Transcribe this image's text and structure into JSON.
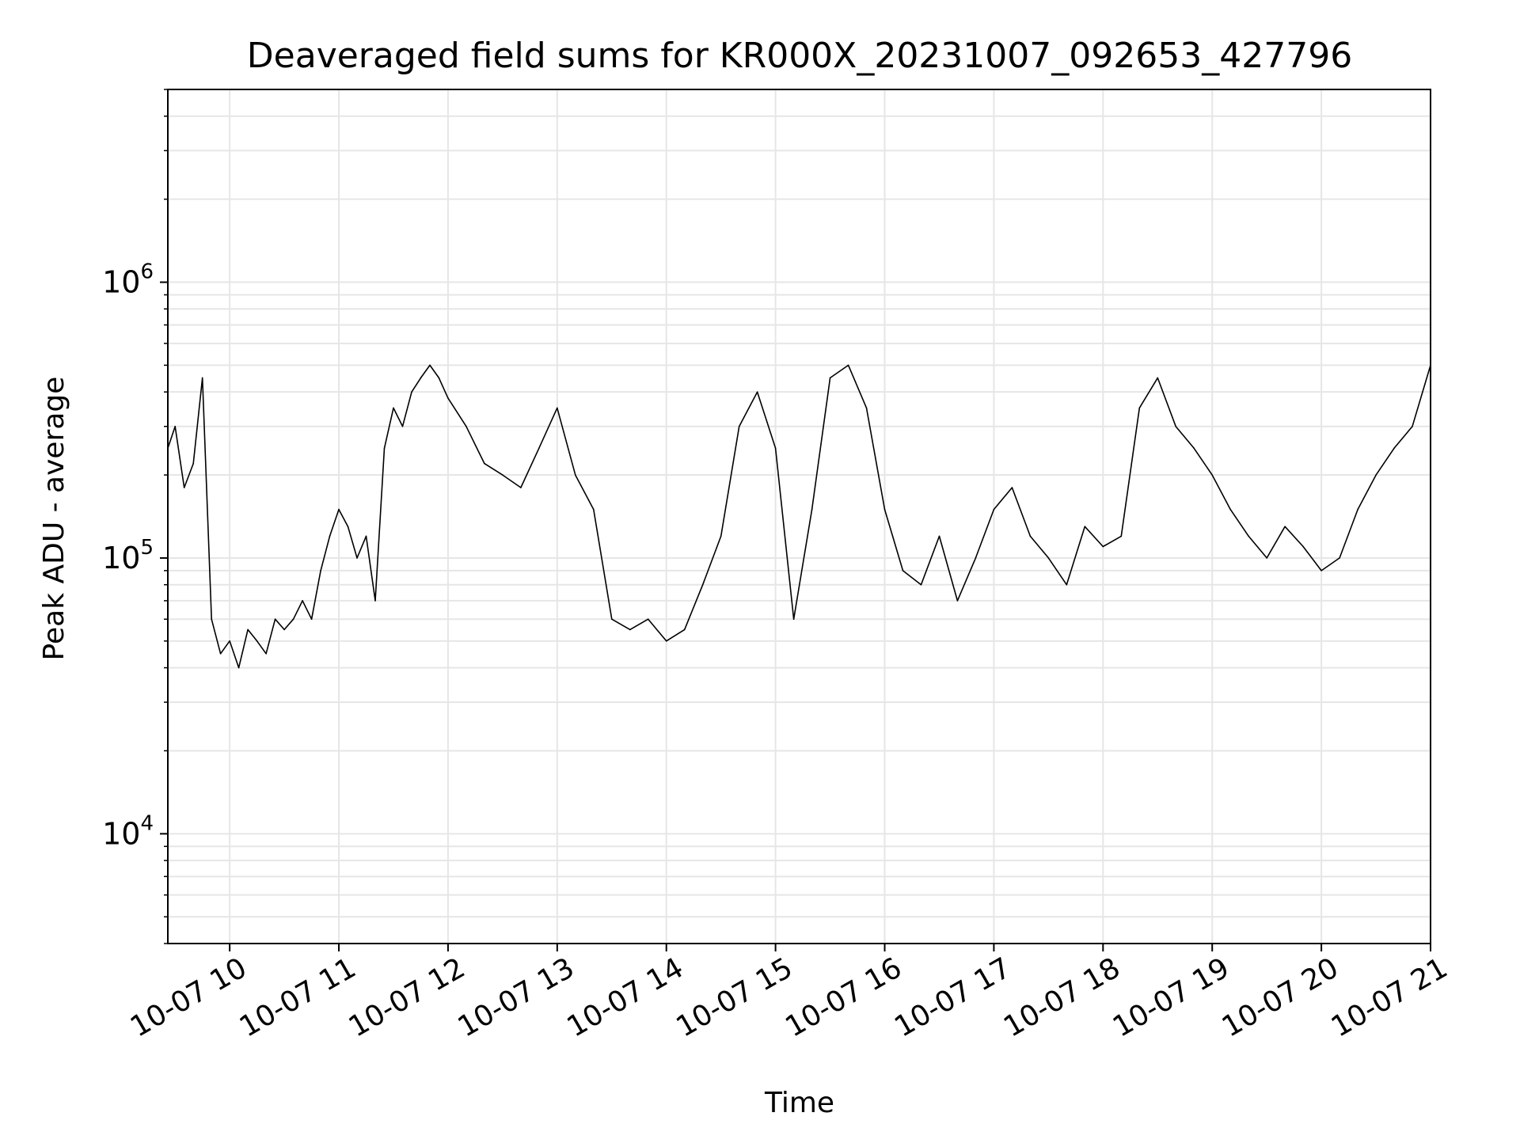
{
  "chart_data": {
    "type": "line",
    "title": "Deaveraged field sums for KR000X_20231007_092653_427796",
    "xlabel": "Time",
    "ylabel": "Peak ADU - average",
    "x_axis": {
      "kind": "time",
      "range": [
        "2023-10-07 09:26",
        "2023-10-07 21:00"
      ],
      "ticks": [
        {
          "value": "2023-10-07 10:00",
          "label": "10-07 10"
        },
        {
          "value": "2023-10-07 11:00",
          "label": "10-07 11"
        },
        {
          "value": "2023-10-07 12:00",
          "label": "10-07 12"
        },
        {
          "value": "2023-10-07 13:00",
          "label": "10-07 13"
        },
        {
          "value": "2023-10-07 14:00",
          "label": "10-07 14"
        },
        {
          "value": "2023-10-07 15:00",
          "label": "10-07 15"
        },
        {
          "value": "2023-10-07 16:00",
          "label": "10-07 16"
        },
        {
          "value": "2023-10-07 17:00",
          "label": "10-07 17"
        },
        {
          "value": "2023-10-07 18:00",
          "label": "10-07 18"
        },
        {
          "value": "2023-10-07 19:00",
          "label": "10-07 19"
        },
        {
          "value": "2023-10-07 20:00",
          "label": "10-07 20"
        },
        {
          "value": "2023-10-07 21:00",
          "label": "10-07 21"
        }
      ]
    },
    "y_axis": {
      "scale": "log",
      "range": [
        4000,
        5000000
      ],
      "ticks": [
        {
          "value": 10000,
          "base": "10",
          "exp": "4"
        },
        {
          "value": 100000,
          "base": "10",
          "exp": "5"
        },
        {
          "value": 1000000,
          "base": "10",
          "exp": "6"
        }
      ]
    },
    "grid": true,
    "legend": "none",
    "line_color": "#000000",
    "grid_color": "#e6e6e6",
    "series": [
      {
        "x": [
          "2023-10-07 09:26",
          "2023-10-07 09:30",
          "2023-10-07 09:35",
          "2023-10-07 09:40",
          "2023-10-07 09:45",
          "2023-10-07 09:50",
          "2023-10-07 09:55",
          "2023-10-07 10:00",
          "2023-10-07 10:05",
          "2023-10-07 10:10",
          "2023-10-07 10:15",
          "2023-10-07 10:20",
          "2023-10-07 10:25",
          "2023-10-07 10:30",
          "2023-10-07 10:35",
          "2023-10-07 10:40",
          "2023-10-07 10:45",
          "2023-10-07 10:50",
          "2023-10-07 10:55",
          "2023-10-07 11:00",
          "2023-10-07 11:05",
          "2023-10-07 11:10",
          "2023-10-07 11:15",
          "2023-10-07 11:20",
          "2023-10-07 11:25",
          "2023-10-07 11:30",
          "2023-10-07 11:35",
          "2023-10-07 11:40",
          "2023-10-07 11:45",
          "2023-10-07 11:50",
          "2023-10-07 11:55",
          "2023-10-07 12:00",
          "2023-10-07 12:10",
          "2023-10-07 12:20",
          "2023-10-07 12:30",
          "2023-10-07 12:40",
          "2023-10-07 12:50",
          "2023-10-07 13:00",
          "2023-10-07 13:10",
          "2023-10-07 13:20",
          "2023-10-07 13:30",
          "2023-10-07 13:40",
          "2023-10-07 13:50",
          "2023-10-07 14:00",
          "2023-10-07 14:10",
          "2023-10-07 14:20",
          "2023-10-07 14:30",
          "2023-10-07 14:40",
          "2023-10-07 14:50",
          "2023-10-07 15:00",
          "2023-10-07 15:10",
          "2023-10-07 15:20",
          "2023-10-07 15:30",
          "2023-10-07 15:40",
          "2023-10-07 15:50",
          "2023-10-07 16:00",
          "2023-10-07 16:10",
          "2023-10-07 16:20",
          "2023-10-07 16:30",
          "2023-10-07 16:40",
          "2023-10-07 16:50",
          "2023-10-07 17:00",
          "2023-10-07 17:10",
          "2023-10-07 17:20",
          "2023-10-07 17:30",
          "2023-10-07 17:40",
          "2023-10-07 17:50",
          "2023-10-07 18:00",
          "2023-10-07 18:10",
          "2023-10-07 18:20",
          "2023-10-07 18:30",
          "2023-10-07 18:40",
          "2023-10-07 18:50",
          "2023-10-07 19:00",
          "2023-10-07 19:10",
          "2023-10-07 19:20",
          "2023-10-07 19:30",
          "2023-10-07 19:40",
          "2023-10-07 19:50",
          "2023-10-07 20:00",
          "2023-10-07 20:10",
          "2023-10-07 20:20",
          "2023-10-07 20:30",
          "2023-10-07 20:40",
          "2023-10-07 20:50",
          "2023-10-07 21:00"
        ],
        "y": [
          250000,
          300000,
          180000,
          220000,
          450000,
          60000,
          45000,
          50000,
          40000,
          55000,
          50000,
          45000,
          60000,
          55000,
          60000,
          70000,
          60000,
          90000,
          120000,
          150000,
          130000,
          100000,
          120000,
          70000,
          250000,
          350000,
          300000,
          400000,
          450000,
          500000,
          450000,
          380000,
          300000,
          220000,
          200000,
          180000,
          250000,
          350000,
          200000,
          150000,
          60000,
          55000,
          60000,
          50000,
          55000,
          80000,
          120000,
          300000,
          400000,
          250000,
          60000,
          150000,
          450000,
          500000,
          350000,
          150000,
          90000,
          80000,
          120000,
          70000,
          100000,
          150000,
          180000,
          120000,
          100000,
          80000,
          130000,
          110000,
          120000,
          350000,
          450000,
          300000,
          250000,
          200000,
          150000,
          120000,
          100000,
          130000,
          110000,
          90000,
          100000,
          150000,
          200000,
          250000,
          300000,
          500000
        ]
      }
    ]
  }
}
